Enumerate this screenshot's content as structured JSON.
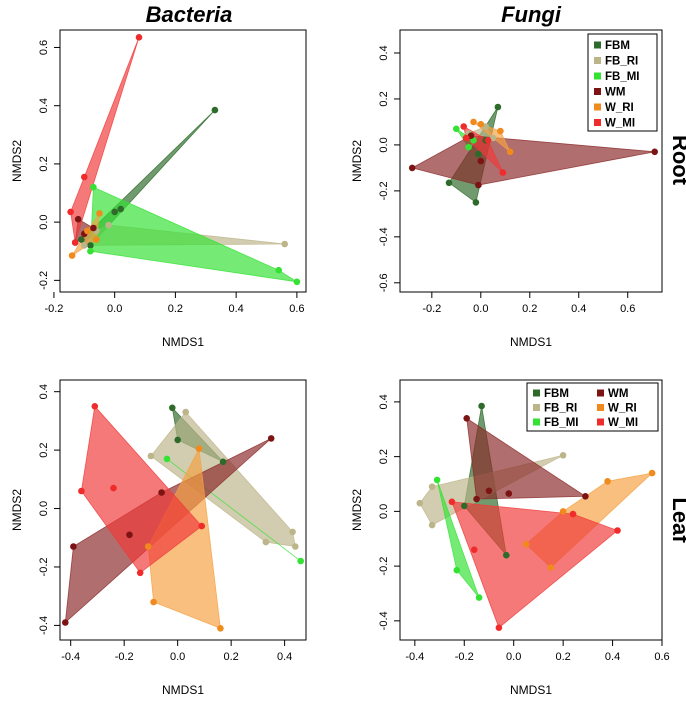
{
  "figure": {
    "col_titles": [
      "Bacteria",
      "Fungi"
    ],
    "row_titles": [
      "Root",
      "Leaf"
    ]
  },
  "groups": [
    {
      "name": "FBM",
      "color": "#2e6b2a",
      "fill": "#2e6b2a"
    },
    {
      "name": "FB_RI",
      "color": "#bdb58a",
      "fill": "#bdb58a"
    },
    {
      "name": "FB_MI",
      "color": "#33e233",
      "fill": "#33e233"
    },
    {
      "name": "WM",
      "color": "#7d1414",
      "fill": "#8b2a2a"
    },
    {
      "name": "W_RI",
      "color": "#f08a1c",
      "fill": "#f5a142"
    },
    {
      "name": "W_MI",
      "color": "#ef2b2b",
      "fill": "#f03a3a"
    }
  ],
  "chart_data": [
    {
      "type": "scatter",
      "title": "Bacteria",
      "row": "Root",
      "xlabel": "NMDS1",
      "ylabel": "NMDS2",
      "xlim": [
        -0.18,
        0.63
      ],
      "ylim": [
        -0.24,
        0.66
      ],
      "xticks": [
        "-0.2",
        "0.0",
        "0.2",
        "0.4",
        "0.6"
      ],
      "yticks": [
        "-0.2",
        "0.0",
        "0.2",
        "0.4",
        "0.6"
      ],
      "legend": false,
      "series": [
        {
          "group": "FBM",
          "points": [
            [
              -0.08,
              -0.08
            ],
            [
              0.33,
              0.385
            ],
            [
              0.0,
              0.035
            ],
            [
              0.02,
              0.045
            ],
            [
              -0.11,
              -0.06
            ]
          ]
        },
        {
          "group": "FB_RI",
          "points": [
            [
              -0.1,
              -0.08
            ],
            [
              0.56,
              -0.075
            ],
            [
              -0.06,
              -0.03
            ],
            [
              -0.02,
              -0.01
            ]
          ]
        },
        {
          "group": "FB_MI",
          "points": [
            [
              -0.07,
              0.12
            ],
            [
              0.54,
              -0.165
            ],
            [
              0.6,
              -0.205
            ],
            [
              -0.08,
              -0.1
            ]
          ]
        },
        {
          "group": "WM",
          "points": [
            [
              -0.12,
              0.01
            ],
            [
              -0.13,
              -0.07
            ],
            [
              -0.1,
              -0.04
            ],
            [
              -0.07,
              -0.02
            ]
          ]
        },
        {
          "group": "W_RI",
          "points": [
            [
              -0.14,
              -0.115
            ],
            [
              -0.05,
              0.03
            ],
            [
              -0.09,
              -0.03
            ],
            [
              -0.06,
              -0.06
            ]
          ]
        },
        {
          "group": "W_MI",
          "points": [
            [
              0.08,
              0.635
            ],
            [
              -0.1,
              0.155
            ],
            [
              -0.145,
              0.035
            ],
            [
              -0.13,
              -0.07
            ]
          ]
        }
      ]
    },
    {
      "type": "scatter",
      "title": "Fungi",
      "row": "Root",
      "xlabel": "NMDS1",
      "ylabel": "NMDS2",
      "xlim": [
        -0.33,
        0.74
      ],
      "ylim": [
        -0.64,
        0.5
      ],
      "xticks": [
        "-0.2",
        "0.0",
        "0.2",
        "0.4",
        "0.6"
      ],
      "yticks": [
        "-0.6",
        "-0.4",
        "-0.2",
        "0.0",
        "0.2",
        "0.4"
      ],
      "legend": true,
      "series": [
        {
          "group": "FBM",
          "points": [
            [
              0.07,
              0.165
            ],
            [
              -0.13,
              -0.165
            ],
            [
              -0.02,
              -0.25
            ],
            [
              -0.01,
              -0.04
            ],
            [
              0.02,
              0.02
            ]
          ]
        },
        {
          "group": "FB_RI",
          "points": [
            [
              -0.05,
              0.05
            ],
            [
              0.02,
              0.08
            ],
            [
              0.05,
              0.03
            ]
          ]
        },
        {
          "group": "FB_MI",
          "points": [
            [
              -0.1,
              0.07
            ],
            [
              -0.05,
              -0.01
            ],
            [
              -0.03,
              0.02
            ]
          ]
        },
        {
          "group": "WM",
          "points": [
            [
              -0.28,
              -0.1
            ],
            [
              0.71,
              -0.03
            ],
            [
              -0.01,
              -0.175
            ],
            [
              0.0,
              -0.07
            ],
            [
              -0.04,
              0.04
            ]
          ]
        },
        {
          "group": "W_RI",
          "points": [
            [
              0.12,
              -0.03
            ],
            [
              -0.03,
              0.1
            ],
            [
              0.08,
              0.06
            ],
            [
              0.0,
              0.09
            ]
          ]
        },
        {
          "group": "W_MI",
          "points": [
            [
              0.09,
              -0.12
            ],
            [
              -0.07,
              0.08
            ],
            [
              -0.06,
              0.03
            ],
            [
              0.03,
              0.02
            ]
          ]
        }
      ]
    },
    {
      "type": "scatter",
      "title": "Bacteria",
      "row": "Leaf",
      "xlabel": "NMDS1",
      "ylabel": "NMDS2",
      "xlim": [
        -0.44,
        0.48
      ],
      "ylim": [
        -0.45,
        0.44
      ],
      "xticks": [
        "-0.4",
        "-0.2",
        "0.0",
        "0.2",
        "0.4"
      ],
      "yticks": [
        "-0.4",
        "-0.2",
        "0.0",
        "0.2",
        "0.4"
      ],
      "legend": false,
      "series": [
        {
          "group": "FBM",
          "points": [
            [
              -0.02,
              0.345
            ],
            [
              0.0,
              0.235
            ],
            [
              0.17,
              0.16
            ]
          ]
        },
        {
          "group": "FB_RI",
          "points": [
            [
              0.03,
              0.33
            ],
            [
              -0.1,
              0.18
            ],
            [
              0.33,
              -0.115
            ],
            [
              0.43,
              -0.08
            ],
            [
              0.44,
              -0.13
            ]
          ]
        },
        {
          "group": "FB_MI",
          "points": [
            [
              -0.04,
              0.17
            ],
            [
              0.46,
              -0.18
            ]
          ]
        },
        {
          "group": "WM",
          "points": [
            [
              -0.42,
              -0.39
            ],
            [
              0.35,
              0.24
            ],
            [
              -0.39,
              -0.13
            ],
            [
              -0.18,
              -0.09
            ],
            [
              -0.06,
              0.055
            ]
          ]
        },
        {
          "group": "W_RI",
          "points": [
            [
              -0.09,
              -0.32
            ],
            [
              0.16,
              -0.41
            ],
            [
              0.08,
              0.205
            ],
            [
              -0.11,
              -0.13
            ]
          ]
        },
        {
          "group": "W_MI",
          "points": [
            [
              -0.31,
              0.35
            ],
            [
              -0.36,
              0.06
            ],
            [
              -0.24,
              0.07
            ],
            [
              -0.14,
              -0.22
            ],
            [
              0.09,
              -0.06
            ]
          ]
        }
      ]
    },
    {
      "type": "scatter",
      "title": "Fungi",
      "row": "Leaf",
      "xlabel": "NMDS1",
      "ylabel": "NMDS2",
      "xlim": [
        -0.46,
        0.6
      ],
      "ylim": [
        -0.47,
        0.48
      ],
      "xticks": [
        "-0.4",
        "-0.2",
        "0.0",
        "0.2",
        "0.4",
        "0.6"
      ],
      "yticks": [
        "-0.4",
        "-0.2",
        "0.0",
        "0.2",
        "0.4"
      ],
      "legend": true,
      "series": [
        {
          "group": "FBM",
          "points": [
            [
              -0.13,
              0.385
            ],
            [
              -0.03,
              -0.16
            ],
            [
              -0.2,
              0.02
            ]
          ]
        },
        {
          "group": "FB_RI",
          "points": [
            [
              -0.38,
              0.03
            ],
            [
              -0.33,
              -0.05
            ],
            [
              0.2,
              0.205
            ],
            [
              -0.33,
              0.09
            ]
          ]
        },
        {
          "group": "FB_MI",
          "points": [
            [
              -0.31,
              0.115
            ],
            [
              -0.23,
              -0.215
            ],
            [
              -0.14,
              -0.315
            ]
          ]
        },
        {
          "group": "WM",
          "points": [
            [
              -0.19,
              0.34
            ],
            [
              0.29,
              0.055
            ],
            [
              -0.1,
              0.075
            ],
            [
              -0.02,
              0.065
            ],
            [
              -0.15,
              0.045
            ]
          ]
        },
        {
          "group": "W_RI",
          "points": [
            [
              0.56,
              0.14
            ],
            [
              0.15,
              -0.205
            ],
            [
              0.38,
              0.11
            ],
            [
              0.05,
              -0.12
            ],
            [
              0.2,
              0.0
            ]
          ]
        },
        {
          "group": "W_MI",
          "points": [
            [
              -0.25,
              0.035
            ],
            [
              0.42,
              -0.07
            ],
            [
              -0.06,
              -0.425
            ],
            [
              0.24,
              -0.01
            ],
            [
              -0.16,
              -0.14
            ]
          ]
        }
      ]
    }
  ]
}
